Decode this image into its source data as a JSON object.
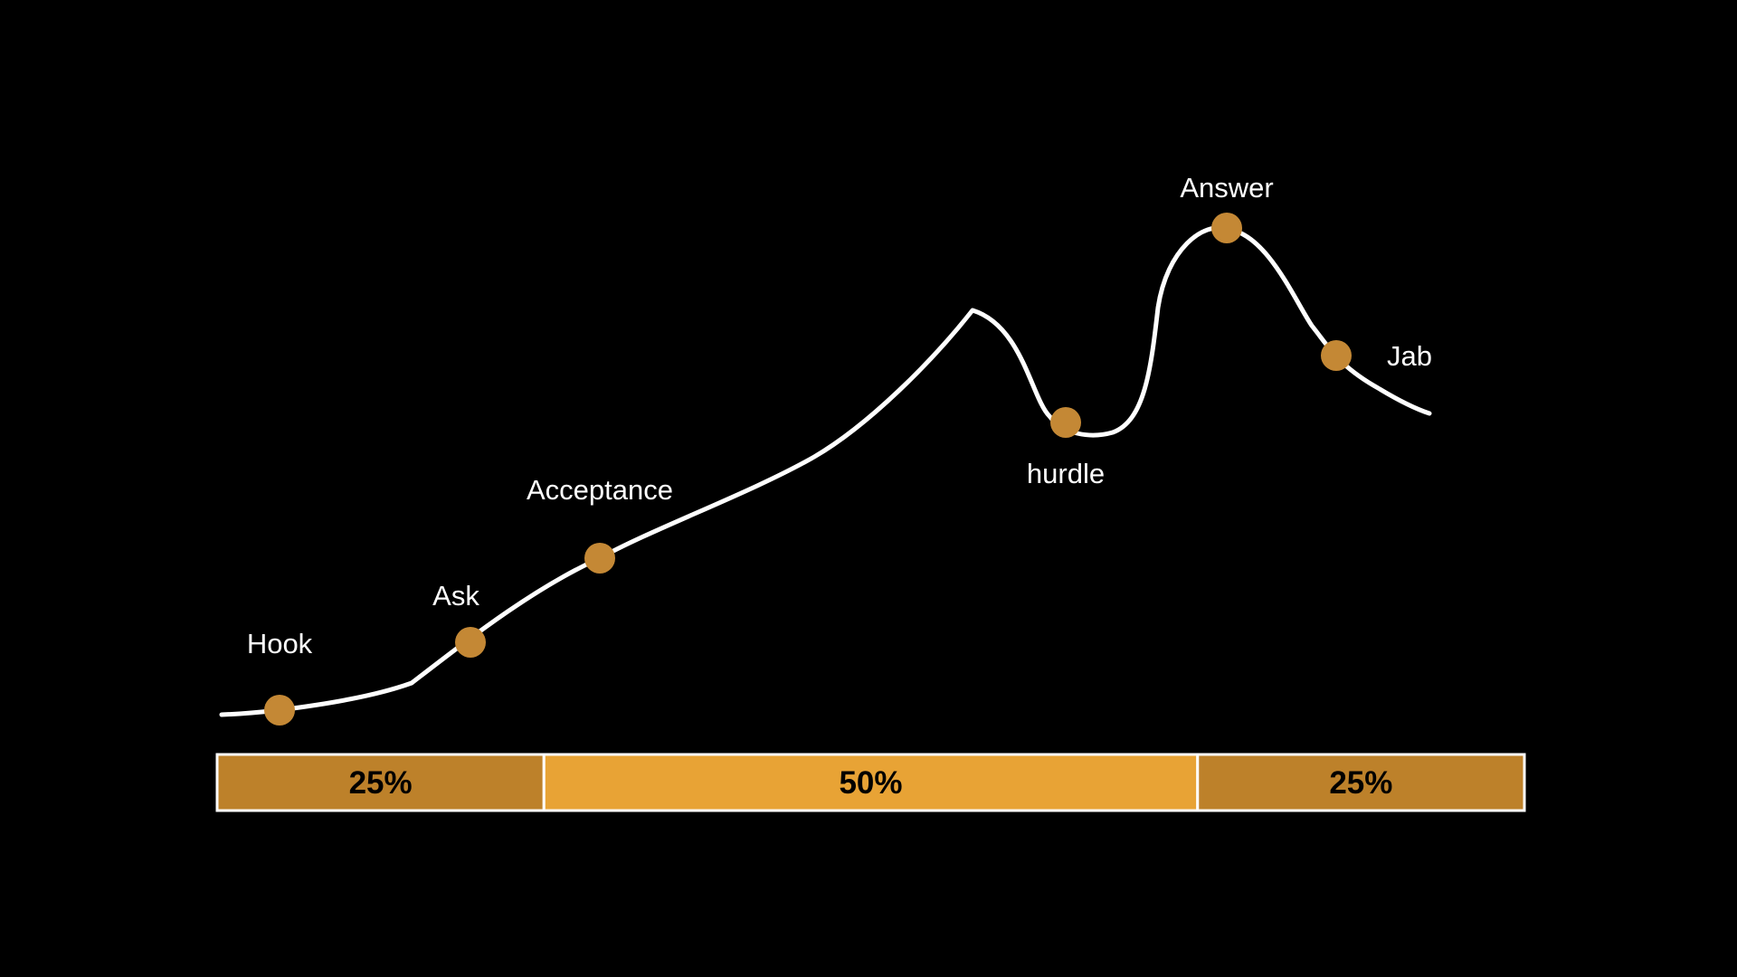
{
  "stages": [
    {
      "label": "Hook",
      "icon": "dot"
    },
    {
      "label": "Ask",
      "icon": "dot"
    },
    {
      "label": "Acceptance",
      "icon": "dot"
    },
    {
      "label": "hurdle",
      "icon": "dot"
    },
    {
      "label": "Answer",
      "icon": "dot"
    },
    {
      "label": "Jab",
      "icon": "dot"
    }
  ],
  "segments": [
    {
      "label": "25%",
      "share": 0.25,
      "color": "#BD812A"
    },
    {
      "label": "50%",
      "share": 0.5,
      "color": "#E8A335"
    },
    {
      "label": "25%",
      "share": 0.25,
      "color": "#BD812A"
    }
  ],
  "colors": {
    "background": "#000000",
    "line": "#FFFFFF",
    "dot": "#C48835",
    "label": "#FFFFFF",
    "segment_text": "#000000"
  }
}
